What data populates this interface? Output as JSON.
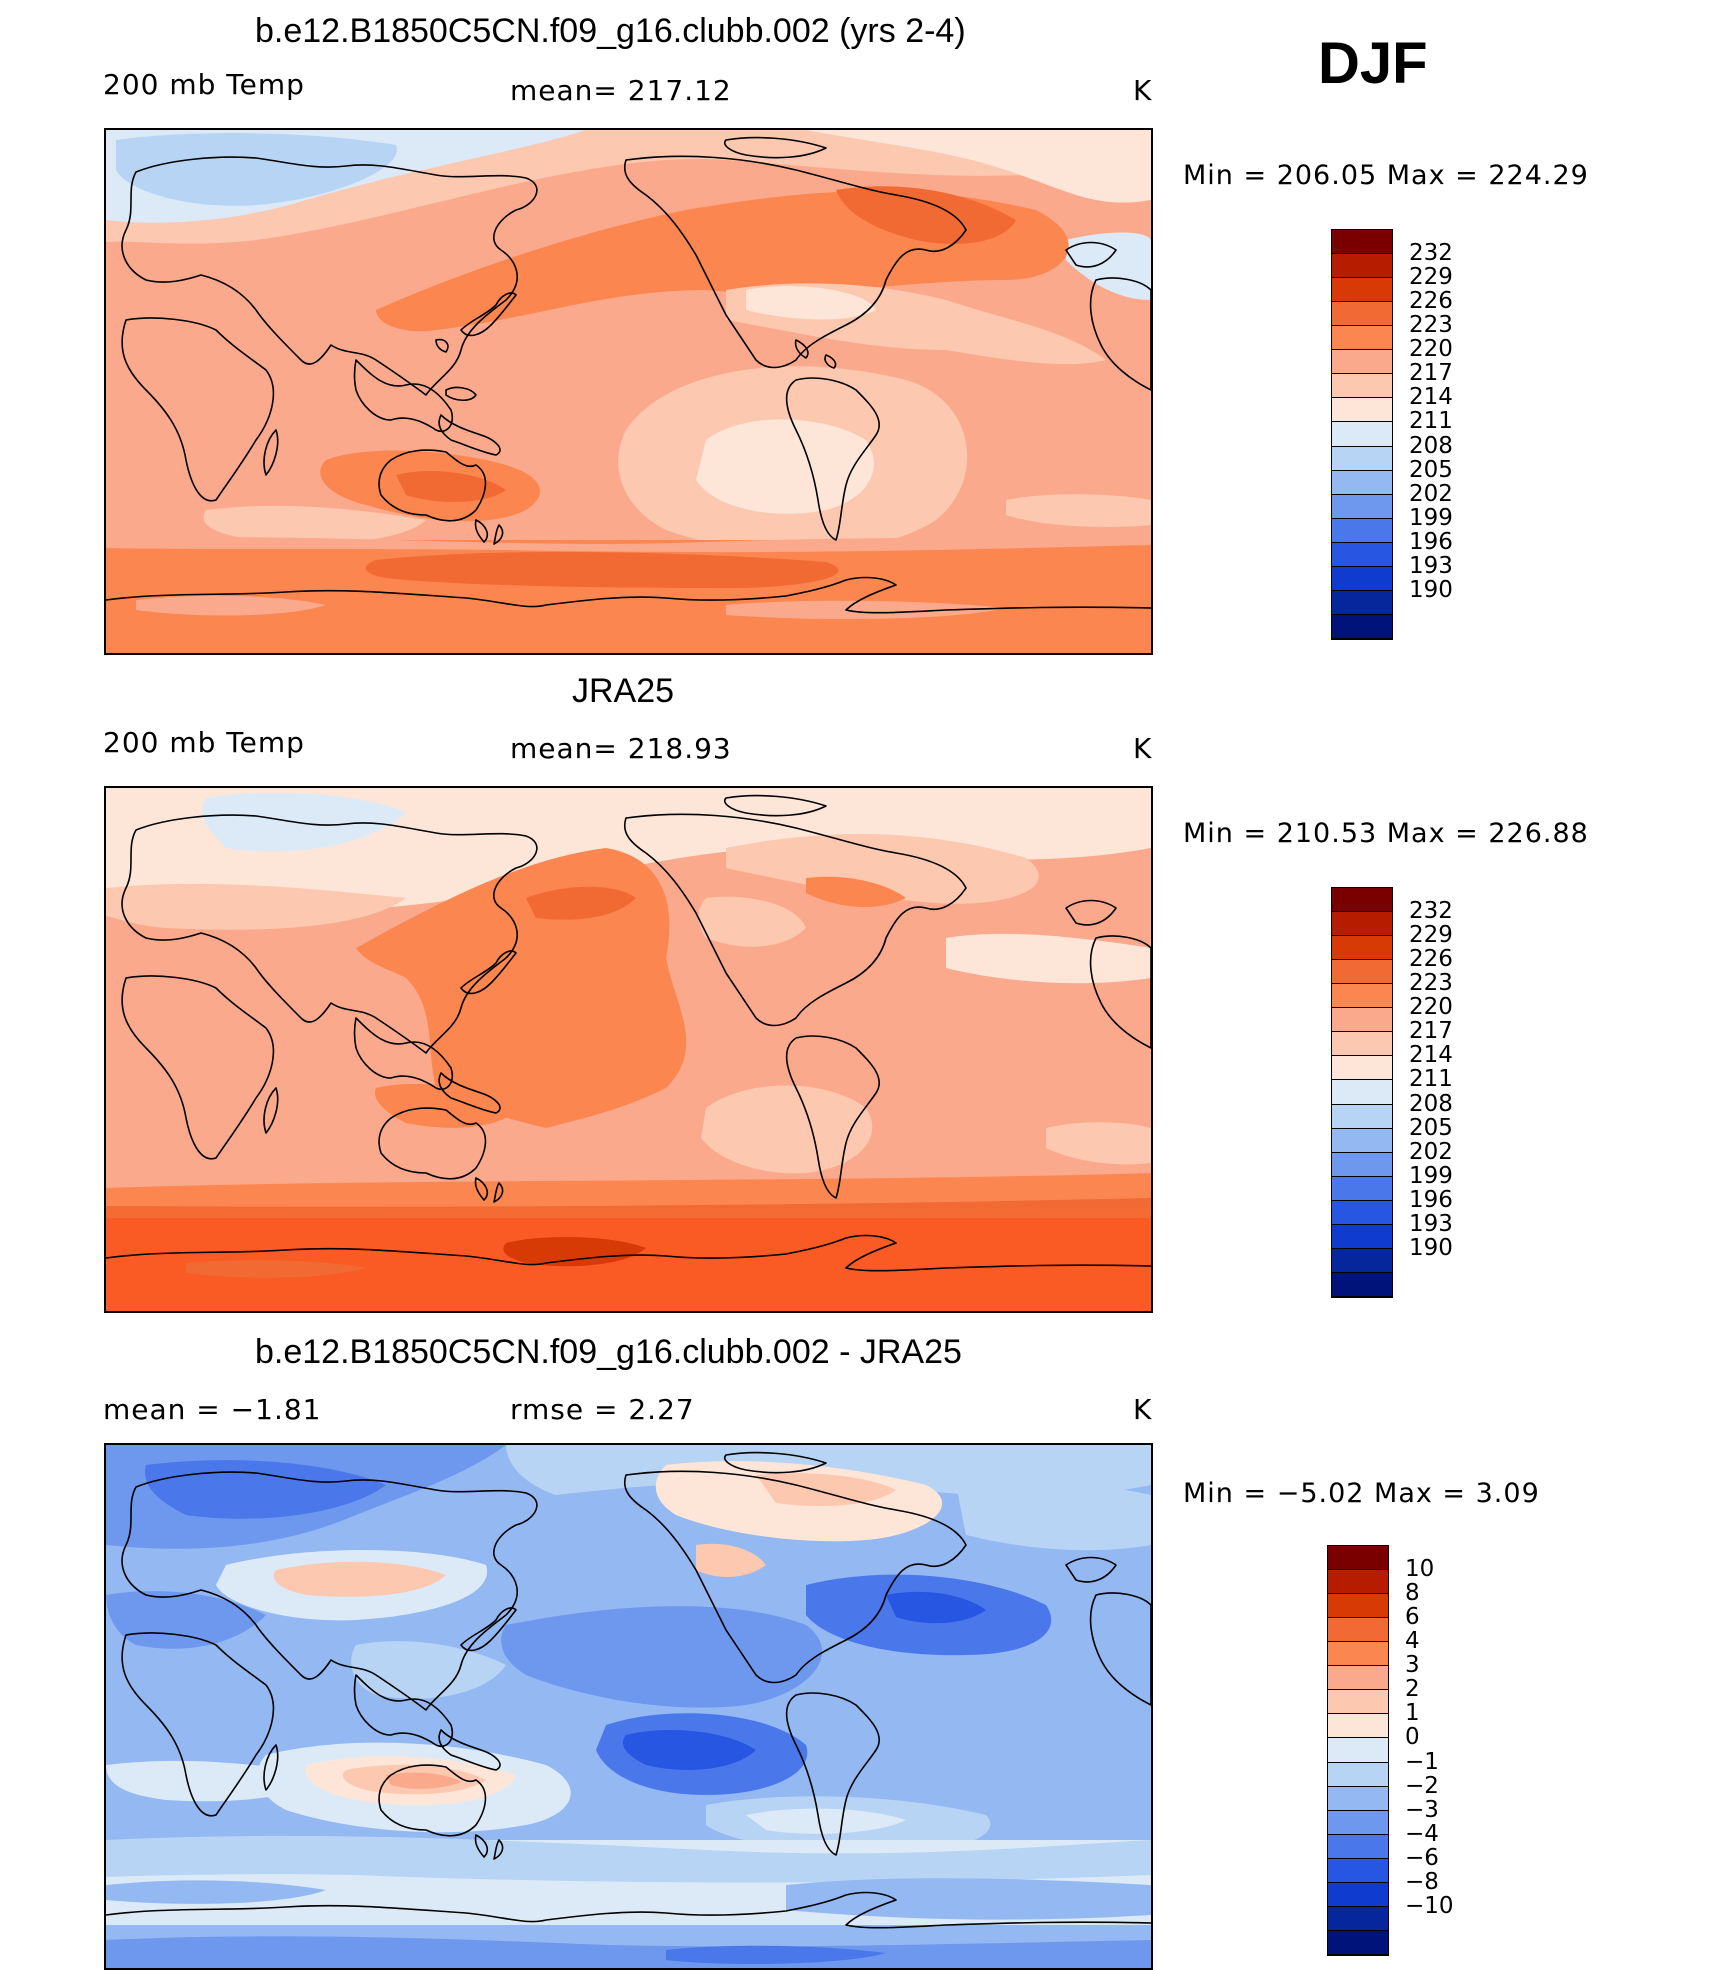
{
  "season": "DJF",
  "panels": [
    {
      "id": "model",
      "title": "b.e12.B1850C5CN.f09_g16.clubb.002 (yrs 2-4)",
      "left_label": "200 mb Temp",
      "center_label": "mean= 217.12",
      "units": "K",
      "minmax": "Min  =  206.05  Max  =  224.29",
      "colorbar": {
        "labels": [
          "232",
          "229",
          "226",
          "223",
          "220",
          "217",
          "214",
          "211",
          "208",
          "205",
          "202",
          "199",
          "196",
          "193",
          "190"
        ],
        "colors": [
          "#7a0000",
          "#b51c00",
          "#d83a06",
          "#f26a33",
          "#fb8650",
          "#fba98c",
          "#fcc8b0",
          "#fde6d8",
          "#dceaf8",
          "#b8d4f4",
          "#93b8f2",
          "#6e98ee",
          "#4a78ea",
          "#2656e2",
          "#0f3bcf",
          "#05279b",
          "#00137a"
        ]
      }
    },
    {
      "id": "obs",
      "title": "JRA25",
      "left_label": "200 mb Temp",
      "center_label": "mean= 218.93",
      "units": "K",
      "minmax": "Min  =  210.53  Max  =  226.88",
      "colorbar": {
        "labels": [
          "232",
          "229",
          "226",
          "223",
          "220",
          "217",
          "214",
          "211",
          "208",
          "205",
          "202",
          "199",
          "196",
          "193",
          "190"
        ],
        "colors": [
          "#7a0000",
          "#b51c00",
          "#d83a06",
          "#f26a33",
          "#fb8650",
          "#fba98c",
          "#fcc8b0",
          "#fde6d8",
          "#dceaf8",
          "#b8d4f4",
          "#93b8f2",
          "#6e98ee",
          "#4a78ea",
          "#2656e2",
          "#0f3bcf",
          "#05279b",
          "#00137a"
        ]
      }
    },
    {
      "id": "diff",
      "title": "b.e12.B1850C5CN.f09_g16.clubb.002 - JRA25",
      "left_label": "mean =   −1.81",
      "center_label": "rmse =    2.27",
      "units": "K",
      "minmax": "Min  =   −5.02  Max  =     3.09",
      "colorbar": {
        "labels": [
          "10",
          "8",
          "6",
          "4",
          "3",
          "2",
          "1",
          "0",
          "−1",
          "−2",
          "−3",
          "−4",
          "−6",
          "−8",
          "−10"
        ],
        "colors": [
          "#7a0000",
          "#b51c00",
          "#d83a06",
          "#f26a33",
          "#fb8650",
          "#fba98c",
          "#fcc8b0",
          "#fde6d8",
          "#dceaf8",
          "#b8d4f4",
          "#93b8f2",
          "#6e98ee",
          "#4a78ea",
          "#2656e2",
          "#0f3bcf",
          "#05279b",
          "#00137a"
        ]
      }
    }
  ]
}
